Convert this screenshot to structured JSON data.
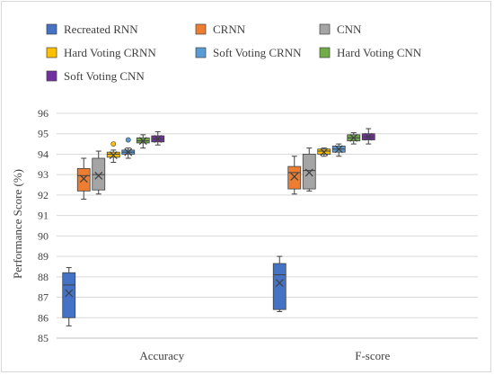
{
  "chart_data": {
    "type": "boxplot",
    "ylabel": "Performance Score (%)",
    "ylim": [
      85,
      96
    ],
    "yticks": [
      85,
      86,
      87,
      88,
      89,
      90,
      91,
      92,
      93,
      94,
      95,
      96
    ],
    "grid": true,
    "legend_position": "top",
    "categories": [
      "Accuracy",
      "F-score"
    ],
    "series": [
      {
        "name": "Recreated RNN",
        "color": "#4472c4",
        "boxes": [
          {
            "min": 85.6,
            "q1": 86.0,
            "median": 87.6,
            "q3": 88.2,
            "max": 88.45,
            "mean": 87.2,
            "outliers": []
          },
          {
            "min": 86.3,
            "q1": 86.4,
            "median": 88.1,
            "q3": 88.65,
            "max": 89.0,
            "mean": 87.7,
            "outliers": []
          }
        ]
      },
      {
        "name": "CRNN",
        "color": "#ed7d31",
        "boxes": [
          {
            "min": 91.8,
            "q1": 92.2,
            "median": 92.95,
            "q3": 93.3,
            "max": 93.8,
            "mean": 92.8,
            "outliers": []
          },
          {
            "min": 92.05,
            "q1": 92.3,
            "median": 93.1,
            "q3": 93.4,
            "max": 93.9,
            "mean": 92.9,
            "outliers": []
          }
        ]
      },
      {
        "name": "CNN",
        "color": "#a5a5a5",
        "boxes": [
          {
            "min": 92.05,
            "q1": 92.25,
            "median": 93.0,
            "q3": 93.8,
            "max": 94.15,
            "mean": 92.95,
            "outliers": []
          },
          {
            "min": 92.2,
            "q1": 92.3,
            "median": 93.2,
            "q3": 94.0,
            "max": 94.3,
            "mean": 93.1,
            "outliers": []
          }
        ]
      },
      {
        "name": "Hard Voting CRNN",
        "color": "#ffc000",
        "boxes": [
          {
            "min": 93.6,
            "q1": 93.85,
            "median": 94.0,
            "q3": 94.1,
            "max": 94.2,
            "mean": 93.95,
            "outliers": [
              94.5
            ]
          },
          {
            "min": 93.9,
            "q1": 94.0,
            "median": 94.15,
            "q3": 94.25,
            "max": 94.3,
            "mean": 94.1,
            "outliers": []
          }
        ]
      },
      {
        "name": "Soft Voting CRNN",
        "color": "#5b9bd5",
        "boxes": [
          {
            "min": 93.8,
            "q1": 94.0,
            "median": 94.1,
            "q3": 94.2,
            "max": 94.3,
            "mean": 94.1,
            "outliers": [
              94.7
            ]
          },
          {
            "min": 93.9,
            "q1": 94.1,
            "median": 94.25,
            "q3": 94.4,
            "max": 94.5,
            "mean": 94.25,
            "outliers": []
          }
        ]
      },
      {
        "name": "Hard Voting CNN",
        "color": "#70ad47",
        "boxes": [
          {
            "min": 94.3,
            "q1": 94.55,
            "median": 94.65,
            "q3": 94.8,
            "max": 94.95,
            "mean": 94.65,
            "outliers": []
          },
          {
            "min": 94.5,
            "q1": 94.65,
            "median": 94.8,
            "q3": 94.95,
            "max": 95.05,
            "mean": 94.8,
            "outliers": []
          }
        ]
      },
      {
        "name": "Soft Voting CNN",
        "color": "#7030a0",
        "boxes": [
          {
            "min": 94.45,
            "q1": 94.6,
            "median": 94.75,
            "q3": 94.9,
            "max": 95.1,
            "mean": 94.75,
            "outliers": []
          },
          {
            "min": 94.5,
            "q1": 94.7,
            "median": 94.85,
            "q3": 95.0,
            "max": 95.25,
            "mean": 94.85,
            "outliers": []
          }
        ]
      }
    ]
  }
}
